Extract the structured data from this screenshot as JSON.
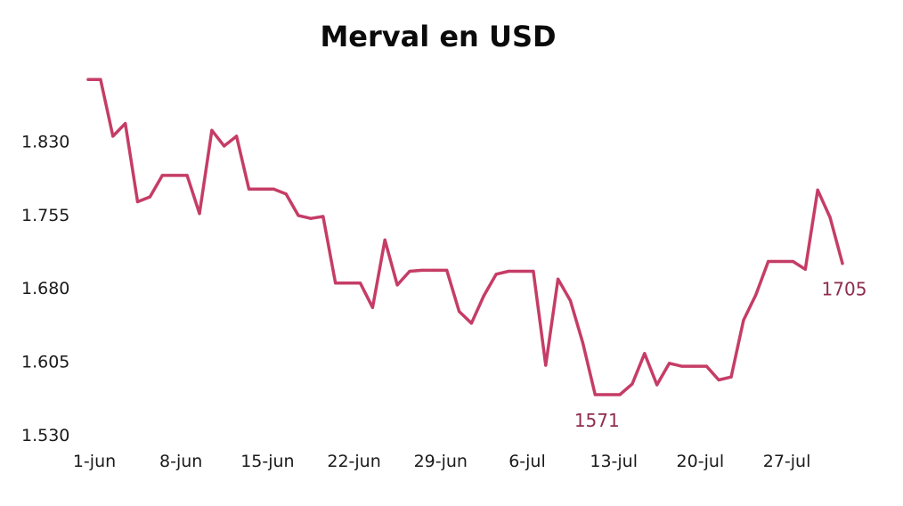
{
  "chart_data": {
    "type": "line",
    "title": "Merval en USD",
    "xlabel": "",
    "ylabel": "",
    "ylim": [
      1530,
      1905
    ],
    "yticks": [
      1530,
      1605,
      1680,
      1755,
      1830
    ],
    "ytick_labels": [
      "1.530",
      "1.605",
      "1.680",
      "1.755",
      "1.830"
    ],
    "xlim": [
      "2020-06-01",
      "2020-08-01"
    ],
    "xticks": [
      "2020-06-01",
      "2020-06-08",
      "2020-06-15",
      "2020-06-22",
      "2020-06-29",
      "2020-07-06",
      "2020-07-13",
      "2020-07-20",
      "2020-07-27"
    ],
    "xtick_labels": [
      "1-jun",
      "8-jun",
      "15-jun",
      "22-jun",
      "29-jun",
      "6-jul",
      "13-jul",
      "20-jul",
      "27-jul"
    ],
    "grid": false,
    "line_color": "#c53d66",
    "annotation_color": "#8e2d4e",
    "series": [
      {
        "points": [
          [
            "2020-06-01",
            1893
          ],
          [
            "2020-06-02",
            1893
          ],
          [
            "2020-06-03",
            1835
          ],
          [
            "2020-06-04",
            1848
          ],
          [
            "2020-06-05",
            1768
          ],
          [
            "2020-06-06",
            1773
          ],
          [
            "2020-06-07",
            1795
          ],
          [
            "2020-06-08",
            1795
          ],
          [
            "2020-06-09",
            1795
          ],
          [
            "2020-06-10",
            1756
          ],
          [
            "2020-06-11",
            1841
          ],
          [
            "2020-06-12",
            1825
          ],
          [
            "2020-06-13",
            1835
          ],
          [
            "2020-06-14",
            1781
          ],
          [
            "2020-06-15",
            1781
          ],
          [
            "2020-06-16",
            1781
          ],
          [
            "2020-06-17",
            1776
          ],
          [
            "2020-06-18",
            1754
          ],
          [
            "2020-06-19",
            1751
          ],
          [
            "2020-06-20",
            1753
          ],
          [
            "2020-06-21",
            1685
          ],
          [
            "2020-06-22",
            1685
          ],
          [
            "2020-06-23",
            1685
          ],
          [
            "2020-06-24",
            1660
          ],
          [
            "2020-06-25",
            1729
          ],
          [
            "2020-06-26",
            1683
          ],
          [
            "2020-06-27",
            1697
          ],
          [
            "2020-06-28",
            1698
          ],
          [
            "2020-06-29",
            1698
          ],
          [
            "2020-06-30",
            1698
          ],
          [
            "2020-07-01",
            1656
          ],
          [
            "2020-07-02",
            1644
          ],
          [
            "2020-07-03",
            1672
          ],
          [
            "2020-07-04",
            1694
          ],
          [
            "2020-07-05",
            1697
          ],
          [
            "2020-07-06",
            1697
          ],
          [
            "2020-07-07",
            1697
          ],
          [
            "2020-07-08",
            1601
          ],
          [
            "2020-07-09",
            1689
          ],
          [
            "2020-07-10",
            1667
          ],
          [
            "2020-07-11",
            1624
          ],
          [
            "2020-07-12",
            1571
          ],
          [
            "2020-07-13",
            1571
          ],
          [
            "2020-07-14",
            1571
          ],
          [
            "2020-07-15",
            1582
          ],
          [
            "2020-07-16",
            1613
          ],
          [
            "2020-07-17",
            1581
          ],
          [
            "2020-07-18",
            1603
          ],
          [
            "2020-07-19",
            1600
          ],
          [
            "2020-07-20",
            1600
          ],
          [
            "2020-07-21",
            1600
          ],
          [
            "2020-07-22",
            1586
          ],
          [
            "2020-07-23",
            1589
          ],
          [
            "2020-07-24",
            1647
          ],
          [
            "2020-07-25",
            1673
          ],
          [
            "2020-07-26",
            1707
          ],
          [
            "2020-07-27",
            1707
          ],
          [
            "2020-07-28",
            1707
          ],
          [
            "2020-07-29",
            1699
          ],
          [
            "2020-07-30",
            1780
          ],
          [
            "2020-07-31",
            1752
          ],
          [
            "2020-08-01",
            1705
          ]
        ]
      }
    ],
    "annotations": [
      {
        "text": "1571",
        "x": "2020-07-12",
        "y": 1571,
        "placement": "below"
      },
      {
        "text": "1705",
        "x": "2020-08-01",
        "y": 1705,
        "placement": "below"
      }
    ]
  }
}
